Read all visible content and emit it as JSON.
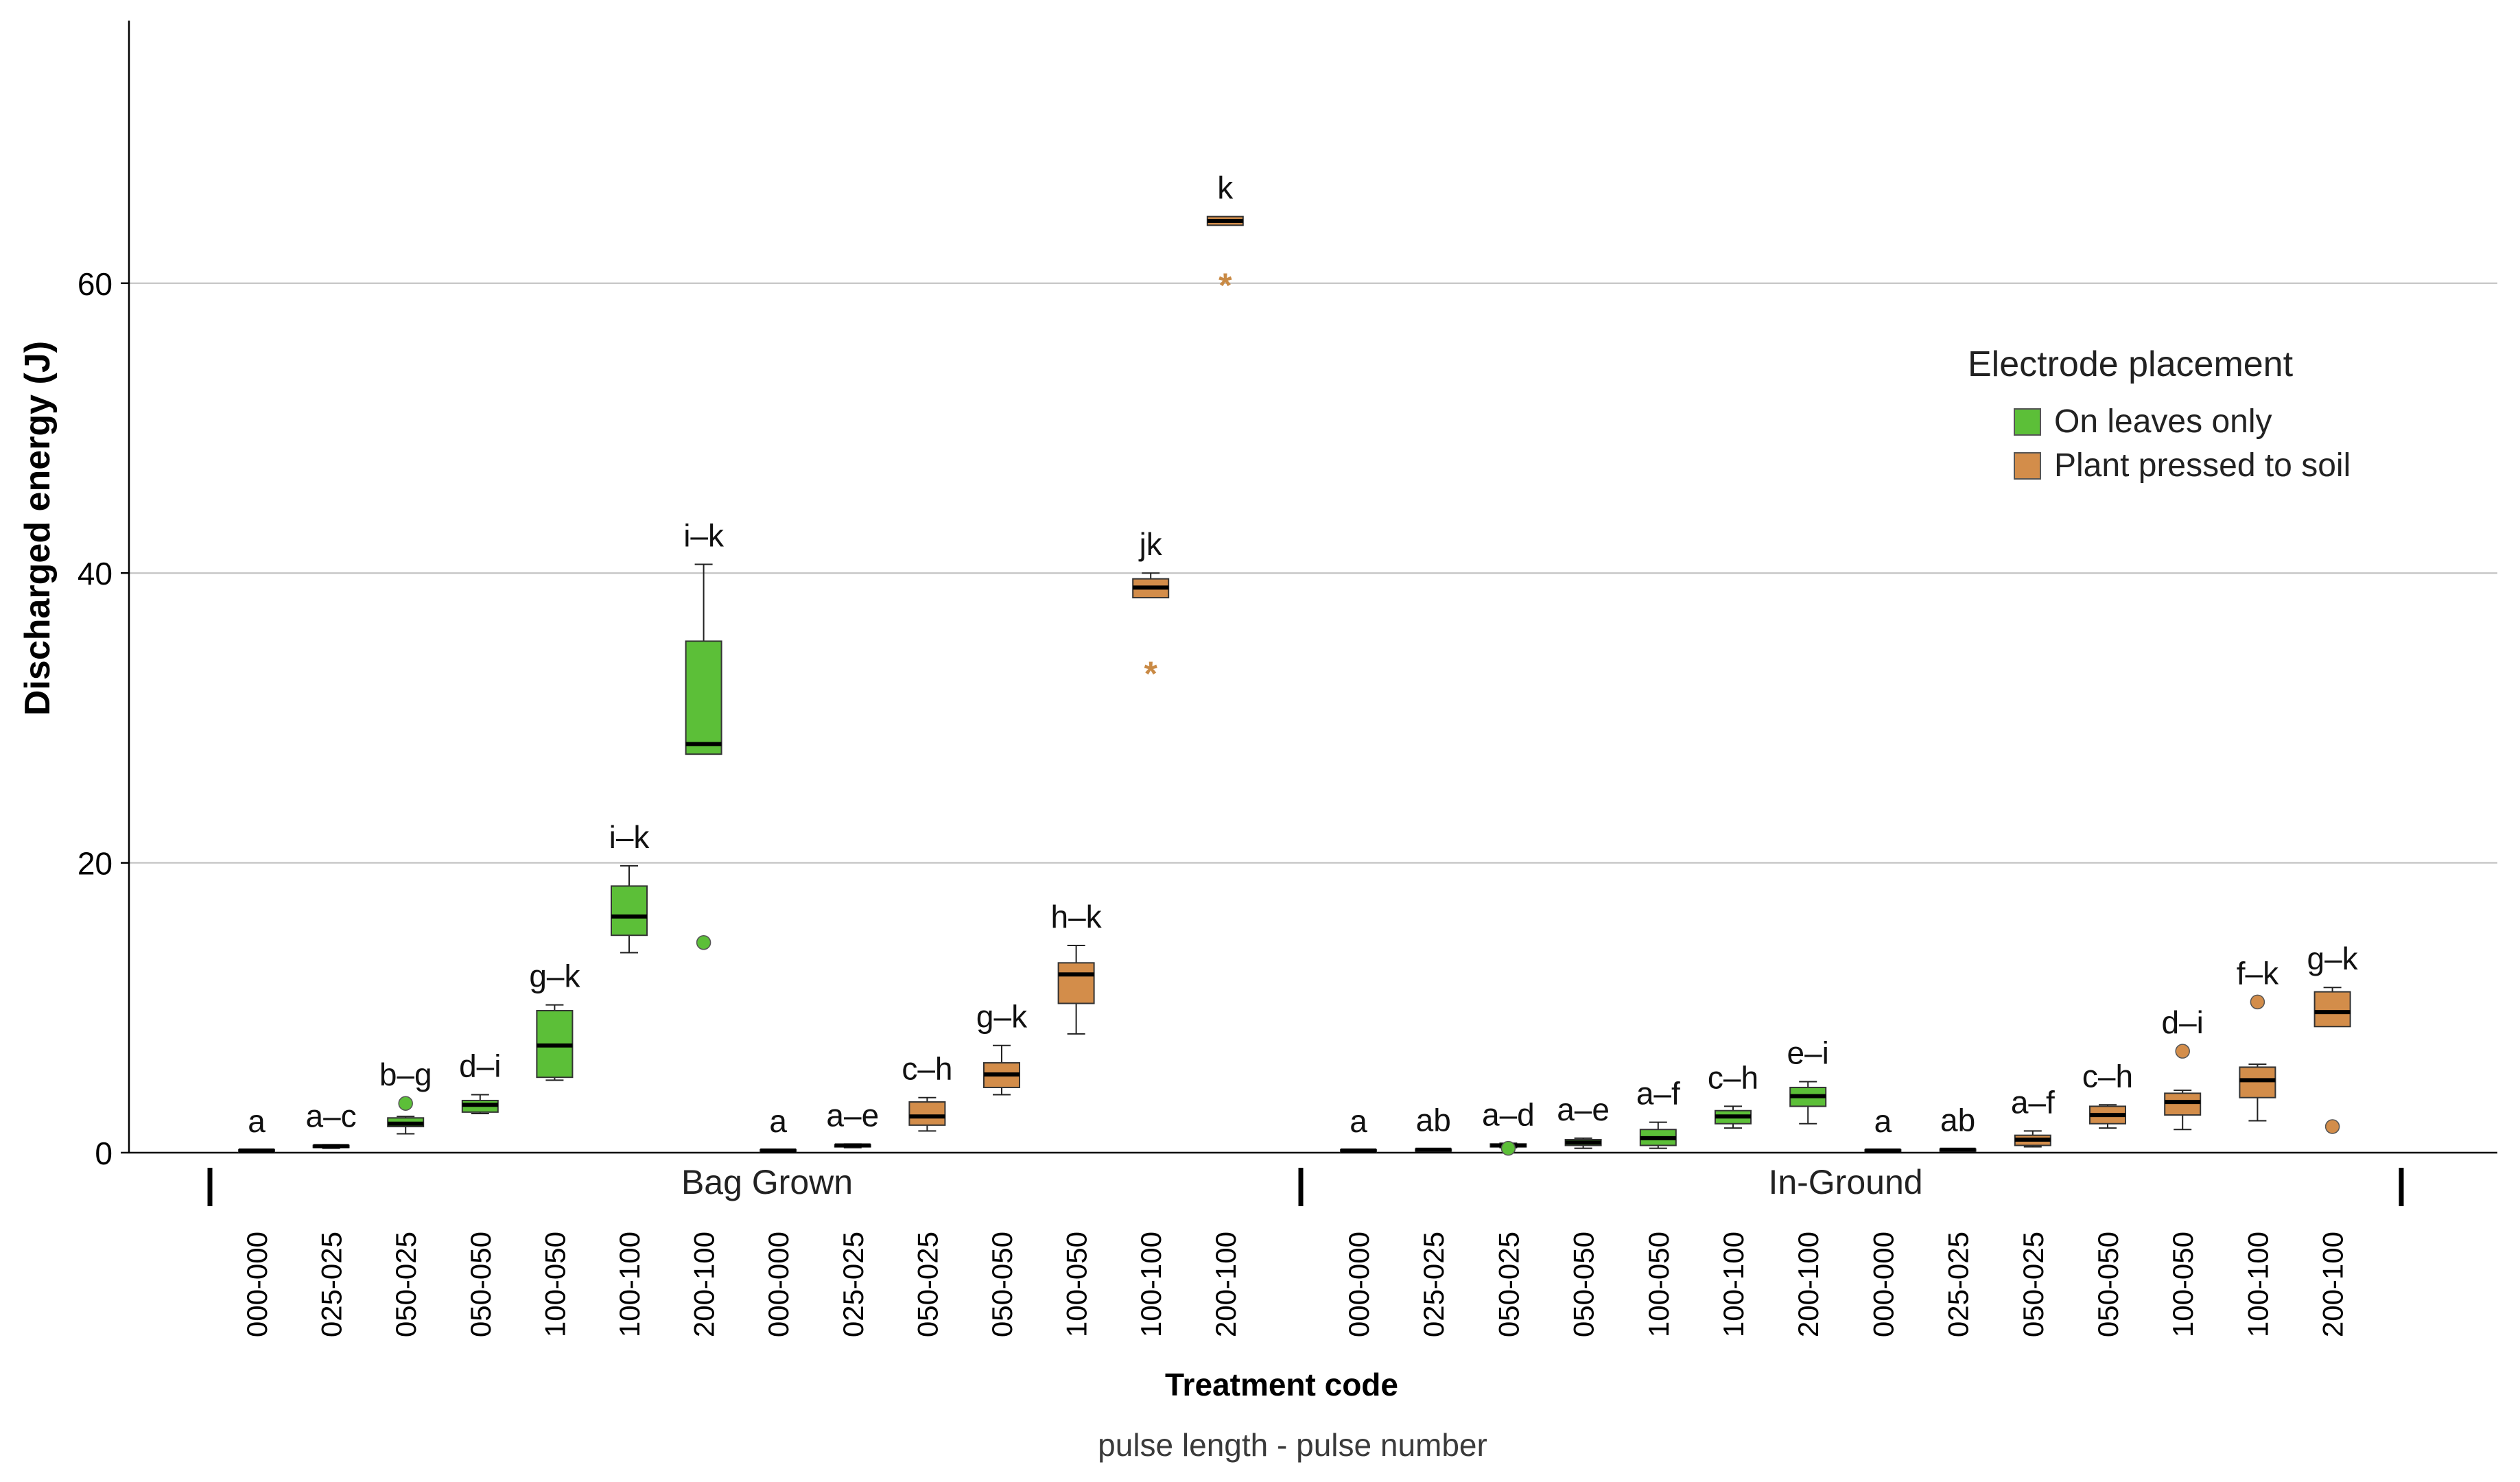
{
  "chart_data": {
    "type": "box",
    "y_label": "Discharged energy (J)",
    "x_label": "Treatment code",
    "x_sublabel": "pulse length - pulse number",
    "y_ticks": [
      0,
      20,
      40,
      60
    ],
    "y_range": [
      0,
      78
    ],
    "gridlines": [
      20,
      40,
      60
    ],
    "groups": [
      "Bag Grown",
      "In-Ground"
    ],
    "legend": {
      "title": "Electrode placement",
      "items": [
        {
          "label": "On leaves only",
          "color": "#5cbf38"
        },
        {
          "label": "Plant pressed to soil",
          "color": "#d38d4a"
        }
      ]
    },
    "colors": {
      "leaves": "#5cbf38",
      "soil": "#d38d4a",
      "outlier_star": "#c98a45",
      "grid": "#bdbdbd",
      "axis": "#000000"
    },
    "boxes": [
      {
        "slot": 0,
        "group": "Bag Grown",
        "placement": "leaves",
        "code": "000-000",
        "letter": "a",
        "q1": 0.1,
        "median": 0.15,
        "q3": 0.2,
        "wlo": 0.1,
        "whi": 0.2,
        "outliers": [],
        "stars": []
      },
      {
        "slot": 1,
        "group": "Bag Grown",
        "placement": "leaves",
        "code": "025-025",
        "letter": "a–c",
        "q1": 0.4,
        "median": 0.45,
        "q3": 0.5,
        "wlo": 0.3,
        "whi": 0.55,
        "outliers": [],
        "stars": []
      },
      {
        "slot": 2,
        "group": "Bag Grown",
        "placement": "leaves",
        "code": "050-025",
        "letter": "b–g",
        "q1": 1.8,
        "median": 2.0,
        "q3": 2.4,
        "wlo": 1.3,
        "whi": 2.5,
        "outliers": [
          3.4
        ],
        "stars": []
      },
      {
        "slot": 3,
        "group": "Bag Grown",
        "placement": "leaves",
        "code": "050-050",
        "letter": "d–i",
        "q1": 2.8,
        "median": 3.3,
        "q3": 3.6,
        "wlo": 2.7,
        "whi": 4.0,
        "outliers": [],
        "stars": []
      },
      {
        "slot": 4,
        "group": "Bag Grown",
        "placement": "leaves",
        "code": "100-050",
        "letter": "g–k",
        "q1": 5.2,
        "median": 7.4,
        "q3": 9.8,
        "wlo": 5.0,
        "whi": 10.2,
        "outliers": [],
        "stars": []
      },
      {
        "slot": 5,
        "group": "Bag Grown",
        "placement": "leaves",
        "code": "100-100",
        "letter": "i–k",
        "q1": 15.0,
        "median": 16.3,
        "q3": 18.4,
        "wlo": 13.8,
        "whi": 19.8,
        "outliers": [],
        "stars": []
      },
      {
        "slot": 6,
        "group": "Bag Grown",
        "placement": "leaves",
        "code": "200-100",
        "letter": "i–k",
        "q1": 27.5,
        "median": 28.2,
        "q3": 35.3,
        "wlo": 27.5,
        "whi": 40.6,
        "outliers": [
          14.5
        ],
        "stars": []
      },
      {
        "slot": 7,
        "group": "Bag Grown",
        "placement": "soil",
        "code": "000-000",
        "letter": "a",
        "q1": 0.1,
        "median": 0.15,
        "q3": 0.2,
        "wlo": 0.1,
        "whi": 0.2,
        "outliers": [],
        "stars": []
      },
      {
        "slot": 8,
        "group": "Bag Grown",
        "placement": "soil",
        "code": "025-025",
        "letter": "a–e",
        "q1": 0.4,
        "median": 0.5,
        "q3": 0.55,
        "wlo": 0.35,
        "whi": 0.6,
        "outliers": [],
        "stars": []
      },
      {
        "slot": 9,
        "group": "Bag Grown",
        "placement": "soil",
        "code": "050-025",
        "letter": "c–h",
        "q1": 1.9,
        "median": 2.5,
        "q3": 3.5,
        "wlo": 1.5,
        "whi": 3.8,
        "outliers": [],
        "stars": []
      },
      {
        "slot": 10,
        "group": "Bag Grown",
        "placement": "soil",
        "code": "050-050",
        "letter": "g–k",
        "q1": 4.5,
        "median": 5.4,
        "q3": 6.2,
        "wlo": 4.0,
        "whi": 7.4,
        "outliers": [],
        "stars": []
      },
      {
        "slot": 11,
        "group": "Bag Grown",
        "placement": "soil",
        "code": "100-050",
        "letter": "h–k",
        "q1": 10.3,
        "median": 12.3,
        "q3": 13.1,
        "wlo": 8.2,
        "whi": 14.3,
        "outliers": [],
        "stars": []
      },
      {
        "slot": 12,
        "group": "Bag Grown",
        "placement": "soil",
        "code": "100-100",
        "letter": "jk",
        "q1": 38.3,
        "median": 39.0,
        "q3": 39.6,
        "wlo": 38.3,
        "whi": 40.0,
        "outliers": [],
        "stars": [
          33.0
        ]
      },
      {
        "slot": 13,
        "group": "Bag Grown",
        "placement": "soil",
        "code": "200-100",
        "letter": "k",
        "q1": 64.0,
        "median": 64.3,
        "q3": 64.6,
        "wlo": 64.0,
        "whi": 64.6,
        "outliers": [],
        "stars": [
          59.8
        ]
      },
      {
        "slot": 14,
        "group": "In-Ground",
        "placement": "leaves",
        "code": "000-000",
        "letter": "a",
        "q1": 0.1,
        "median": 0.15,
        "q3": 0.2,
        "wlo": 0.1,
        "whi": 0.2,
        "outliers": [],
        "stars": []
      },
      {
        "slot": 15,
        "group": "In-Ground",
        "placement": "leaves",
        "code": "025-025",
        "letter": "ab",
        "q1": 0.15,
        "median": 0.2,
        "q3": 0.25,
        "wlo": 0.15,
        "whi": 0.25,
        "outliers": [],
        "stars": []
      },
      {
        "slot": 16,
        "group": "In-Ground",
        "placement": "leaves",
        "code": "050-025",
        "letter": "a–d",
        "q1": 0.4,
        "median": 0.5,
        "q3": 0.6,
        "wlo": 0.35,
        "whi": 0.65,
        "outliers": [
          0.3
        ],
        "stars": []
      },
      {
        "slot": 17,
        "group": "In-Ground",
        "placement": "leaves",
        "code": "050-050",
        "letter": "a–e",
        "q1": 0.5,
        "median": 0.7,
        "q3": 0.9,
        "wlo": 0.3,
        "whi": 1.0,
        "outliers": [],
        "stars": []
      },
      {
        "slot": 18,
        "group": "In-Ground",
        "placement": "leaves",
        "code": "100-050",
        "letter": "a–f",
        "q1": 0.5,
        "median": 1.0,
        "q3": 1.6,
        "wlo": 0.3,
        "whi": 2.1,
        "outliers": [],
        "stars": []
      },
      {
        "slot": 19,
        "group": "In-Ground",
        "placement": "leaves",
        "code": "100-100",
        "letter": "c–h",
        "q1": 2.0,
        "median": 2.5,
        "q3": 2.9,
        "wlo": 1.7,
        "whi": 3.2,
        "outliers": [],
        "stars": []
      },
      {
        "slot": 20,
        "group": "In-Ground",
        "placement": "leaves",
        "code": "200-100",
        "letter": "e–i",
        "q1": 3.2,
        "median": 3.9,
        "q3": 4.5,
        "wlo": 2.0,
        "whi": 4.9,
        "outliers": [],
        "stars": []
      },
      {
        "slot": 21,
        "group": "In-Ground",
        "placement": "soil",
        "code": "000-000",
        "letter": "a",
        "q1": 0.1,
        "median": 0.15,
        "q3": 0.2,
        "wlo": 0.1,
        "whi": 0.2,
        "outliers": [],
        "stars": []
      },
      {
        "slot": 22,
        "group": "In-Ground",
        "placement": "soil",
        "code": "025-025",
        "letter": "ab",
        "q1": 0.15,
        "median": 0.2,
        "q3": 0.25,
        "wlo": 0.15,
        "whi": 0.25,
        "outliers": [],
        "stars": []
      },
      {
        "slot": 23,
        "group": "In-Ground",
        "placement": "soil",
        "code": "050-025",
        "letter": "a–f",
        "q1": 0.5,
        "median": 0.9,
        "q3": 1.2,
        "wlo": 0.4,
        "whi": 1.5,
        "outliers": [],
        "stars": []
      },
      {
        "slot": 24,
        "group": "In-Ground",
        "placement": "soil",
        "code": "050-050",
        "letter": "c–h",
        "q1": 2.0,
        "median": 2.6,
        "q3": 3.2,
        "wlo": 1.7,
        "whi": 3.3,
        "outliers": [],
        "stars": []
      },
      {
        "slot": 25,
        "group": "In-Ground",
        "placement": "soil",
        "code": "100-050",
        "letter": "d–i",
        "q1": 2.6,
        "median": 3.5,
        "q3": 4.1,
        "wlo": 1.6,
        "whi": 4.3,
        "outliers": [
          7.0
        ],
        "stars": []
      },
      {
        "slot": 26,
        "group": "In-Ground",
        "placement": "soil",
        "code": "100-100",
        "letter": "f–k",
        "q1": 3.8,
        "median": 5.0,
        "q3": 5.9,
        "wlo": 2.2,
        "whi": 6.1,
        "outliers": [
          10.4
        ],
        "stars": []
      },
      {
        "slot": 27,
        "group": "In-Ground",
        "placement": "soil",
        "code": "200-100",
        "letter": "g–k",
        "q1": 8.7,
        "median": 9.7,
        "q3": 11.1,
        "wlo": 8.7,
        "whi": 11.4,
        "outliers": [
          1.8
        ],
        "stars": []
      }
    ]
  }
}
